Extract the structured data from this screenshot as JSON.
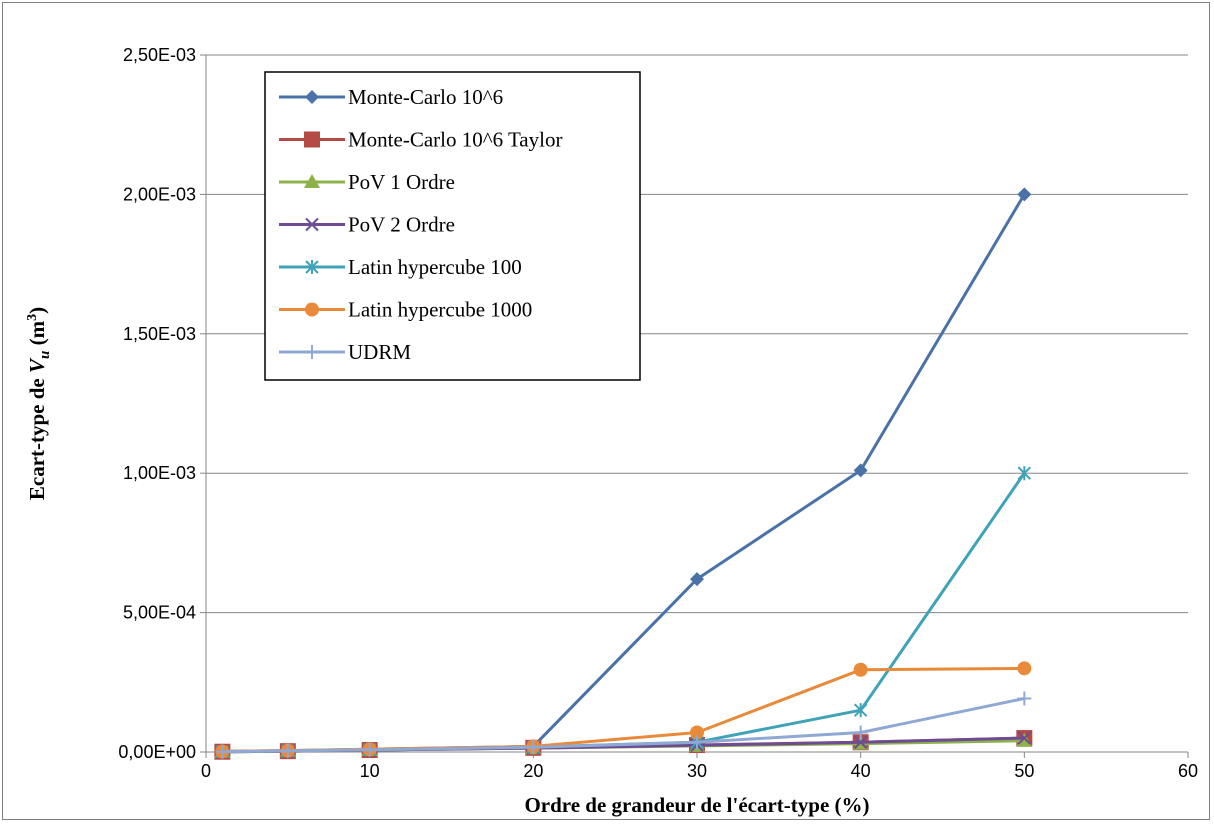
{
  "chart_data": {
    "type": "line",
    "title": "",
    "xlabel": "Ordre de grandeur de l'écart-type (%)",
    "ylabel_prefix": "Ecart-type de ",
    "ylabel_var": "V",
    "ylabel_sub": "u",
    "ylabel_suffix": " (m",
    "ylabel_sup": "3",
    "ylabel_close": ")",
    "xlim": [
      0,
      60
    ],
    "ylim": [
      0,
      0.0025
    ],
    "x_ticks": [
      0,
      10,
      20,
      30,
      40,
      50,
      60
    ],
    "x_tick_labels": [
      "0",
      "10",
      "20",
      "30",
      "40",
      "50",
      "60"
    ],
    "y_ticks": [
      0,
      0.0005,
      0.001,
      0.0015,
      0.002,
      0.0025
    ],
    "y_tick_labels": [
      "0,00E+00",
      "5,00E-04",
      "1,00E-03",
      "1,50E-03",
      "2,00E-03",
      "2,50E-03"
    ],
    "grid": "horizontal",
    "legend_position": "top-left",
    "x": [
      1,
      5,
      10,
      20,
      30,
      40,
      50
    ],
    "series": [
      {
        "name": "Monte-Carlo 10^6",
        "color": "#4a72a8",
        "marker": "diamond",
        "values": [
          2e-06,
          5e-06,
          1e-05,
          2e-05,
          0.00062,
          0.00101,
          0.002
        ]
      },
      {
        "name": "Monte-Carlo 10^6 Taylor",
        "color": "#b44a46",
        "marker": "square",
        "values": [
          1e-06,
          3e-06,
          7e-06,
          1.5e-05,
          2.5e-05,
          3.5e-05,
          5e-05
        ]
      },
      {
        "name": "PoV 1 Ordre",
        "color": "#8db24b",
        "marker": "triangle",
        "values": [
          1e-06,
          3e-06,
          7e-06,
          1.4e-05,
          2.2e-05,
          3e-05,
          4e-05
        ]
      },
      {
        "name": "PoV 2 Ordre",
        "color": "#6e4c94",
        "marker": "x",
        "values": [
          1e-06,
          3e-06,
          7e-06,
          1.4e-05,
          2.4e-05,
          3.5e-05,
          5e-05
        ]
      },
      {
        "name": "Latin hypercube 100",
        "color": "#3ea3b8",
        "marker": "star",
        "values": [
          1e-06,
          4e-06,
          8e-06,
          1.8e-05,
          3.5e-05,
          0.00015,
          0.001
        ]
      },
      {
        "name": "Latin hypercube 1000",
        "color": "#e88a3a",
        "marker": "circle",
        "values": [
          2e-06,
          5e-06,
          1e-05,
          2e-05,
          7e-05,
          0.000295,
          0.0003
        ]
      },
      {
        "name": "UDRM",
        "color": "#8fa8d4",
        "marker": "plus",
        "values": [
          1e-06,
          4e-06,
          8e-06,
          1.7e-05,
          3.5e-05,
          7e-05,
          0.000192
        ]
      }
    ]
  }
}
